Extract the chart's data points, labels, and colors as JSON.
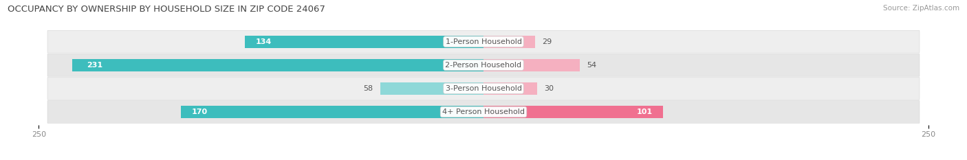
{
  "title": "OCCUPANCY BY OWNERSHIP BY HOUSEHOLD SIZE IN ZIP CODE 24067",
  "source": "Source: ZipAtlas.com",
  "categories": [
    "1-Person Household",
    "2-Person Household",
    "3-Person Household",
    "4+ Person Household"
  ],
  "owner_values": [
    134,
    231,
    58,
    170
  ],
  "renter_values": [
    29,
    54,
    30,
    101
  ],
  "owner_color": "#3DBDBD",
  "owner_color_light": "#8ED8D8",
  "renter_color": "#F07090",
  "renter_color_light": "#F5B0C0",
  "label_color": "#555555",
  "background_color": "#FFFFFF",
  "row_colors": [
    "#F0F0F0",
    "#E8E8E8",
    "#F0F0F0",
    "#E8E8E8"
  ],
  "xlim": 250,
  "bar_height": 0.52,
  "title_fontsize": 9.5,
  "source_fontsize": 7.5,
  "label_fontsize": 8,
  "tick_fontsize": 8,
  "legend_fontsize": 8
}
